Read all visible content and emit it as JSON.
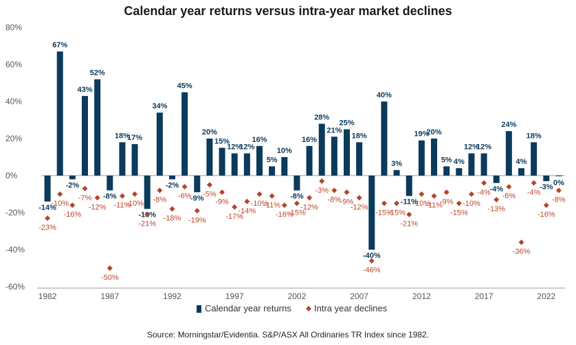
{
  "title": "Calendar year returns versus intra-year market declines",
  "source": "Source: Morningstar/Evidentia. S&P/ASX All Ordinaries TR Index since 1982.",
  "colors": {
    "returns": "#0b3a5b",
    "declines": "#b5452a",
    "decline_label": "#c0452a",
    "axis": "#999999"
  },
  "chart_data": {
    "type": "bar",
    "title": "Calendar year returns versus intra-year market declines",
    "xlabel": "",
    "ylabel": "",
    "ylim": [
      -60,
      80
    ],
    "y_ticks": [
      "80%",
      "60%",
      "40%",
      "20%",
      "0%",
      "-20%",
      "-40%",
      "-60%"
    ],
    "y_tick_values": [
      80,
      60,
      40,
      20,
      0,
      -20,
      -40,
      -60
    ],
    "x_tick_labels": [
      "1982",
      "1987",
      "1992",
      "1997",
      "2002",
      "2007",
      "2012",
      "2017",
      "2022"
    ],
    "categories": [
      1982,
      1983,
      1984,
      1985,
      1986,
      1987,
      1988,
      1989,
      1990,
      1991,
      1992,
      1993,
      1994,
      1995,
      1996,
      1997,
      1998,
      1999,
      2000,
      2001,
      2002,
      2003,
      2004,
      2005,
      2006,
      2007,
      2008,
      2009,
      2010,
      2011,
      2012,
      2013,
      2014,
      2015,
      2016,
      2017,
      2018,
      2019,
      2020,
      2021,
      2022,
      2023
    ],
    "series": [
      {
        "name": "Calendar year returns",
        "kind": "bar",
        "values": [
          -14,
          67,
          -2,
          43,
          52,
          -8,
          18,
          17,
          -18,
          34,
          -2,
          45,
          -9,
          20,
          15,
          12,
          12,
          16,
          5,
          10,
          -8,
          16,
          28,
          21,
          25,
          18,
          -40,
          40,
          3,
          -11,
          19,
          20,
          5,
          4,
          12,
          12,
          -4,
          24,
          4,
          18,
          -3,
          0
        ],
        "labels": [
          "-14%",
          "67%",
          "-2%",
          "43%",
          "52%",
          "-8%",
          "18%",
          "17%",
          "-18%",
          "34%",
          "-2%",
          "45%",
          "-9%",
          "20%",
          "15%",
          "12%",
          "12%",
          "16%",
          "5%",
          "10%",
          "-8%",
          "16%",
          "28%",
          "21%",
          "25%",
          "18%",
          "-40%",
          "40%",
          "3%",
          "-11%",
          "19%",
          "20%",
          "5%",
          "4%",
          "12%",
          "12%",
          "-4%",
          "24%",
          "4%",
          "18%",
          "-3%",
          "0%"
        ]
      },
      {
        "name": "Intra year declines",
        "kind": "scatter",
        "values": [
          -23,
          -10,
          -16,
          -7,
          -12,
          -50,
          -11,
          -10,
          -21,
          -8,
          -18,
          -6,
          -19,
          -5,
          -9,
          -17,
          -14,
          -10,
          -11,
          -16,
          -15,
          -12,
          -3,
          -8,
          -9,
          -12,
          -46,
          -15,
          -15,
          -21,
          -10,
          -11,
          -9,
          -15,
          -10,
          -4,
          -13,
          -6,
          -36,
          -4,
          -16,
          -8
        ],
        "labels": [
          "-23%",
          "-10%",
          "-16%",
          "-7%",
          "-12%",
          "-50%",
          "-11%",
          "-10%",
          "-21%",
          "-8%",
          "-18%",
          "-6%",
          "-19%",
          "-5%",
          "-9%",
          "-17%",
          "-14%",
          "-10%",
          "-11%",
          "-16%",
          "-15%",
          "-12%",
          "-3%",
          "-8%",
          "-9%",
          "-12%",
          "-46%",
          "-15%",
          "-15%",
          "-21%",
          "-10%",
          "-11%",
          "-9%",
          "-15%",
          "-10%",
          "-4%",
          "-13%",
          "-6%",
          "-36%",
          "-4%",
          "-16%",
          "-8%"
        ]
      }
    ],
    "legend": {
      "position": "bottom",
      "items": [
        "Calendar year returns",
        "Intra year declines"
      ]
    }
  }
}
